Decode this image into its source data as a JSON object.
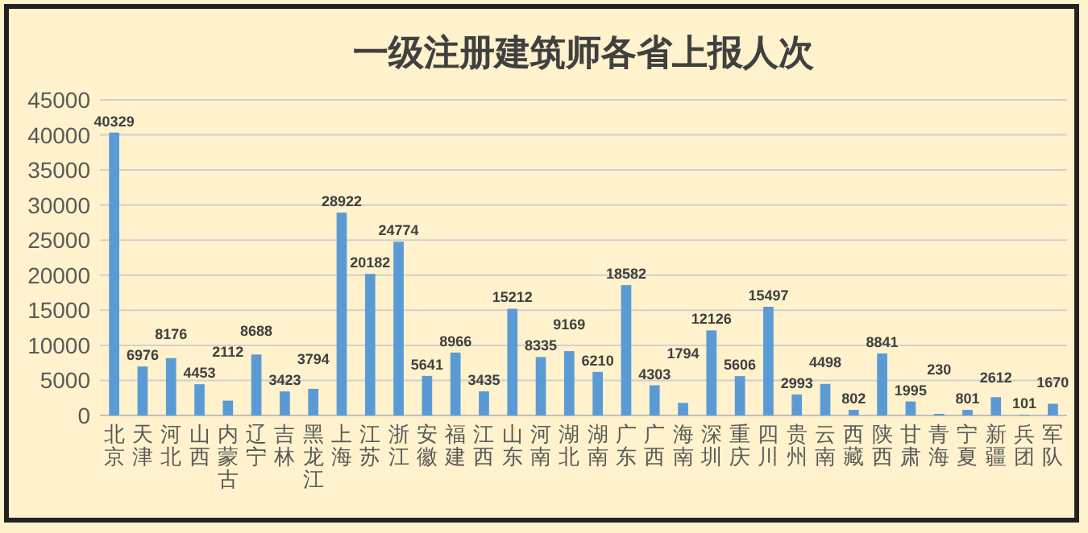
{
  "chart_data": {
    "type": "bar",
    "title": "一级注册建筑师各省上报人次",
    "categories": [
      "北京",
      "天津",
      "河北",
      "山西",
      "内蒙古",
      "辽宁",
      "吉林",
      "黑龙江",
      "上海",
      "江苏",
      "浙江",
      "安徽",
      "福建",
      "江西",
      "山东",
      "河南",
      "湖北",
      "湖南",
      "广东",
      "广西",
      "海南",
      "深圳",
      "重庆",
      "四川",
      "贵州",
      "云南",
      "西藏",
      "陕西",
      "甘肃",
      "青海",
      "宁夏",
      "新疆",
      "兵团",
      "军队"
    ],
    "values": [
      40329,
      6976,
      8176,
      4453,
      2112,
      8688,
      3423,
      3794,
      28922,
      20182,
      24774,
      5641,
      8966,
      3435,
      15212,
      8335,
      9169,
      6210,
      18582,
      4303,
      1794,
      12126,
      5606,
      15497,
      2993,
      4498,
      802,
      8841,
      1995,
      230,
      801,
      2612,
      101,
      1670
    ],
    "color": "#5b9bd5",
    "ylim": [
      0,
      45000
    ],
    "yticks": [
      0,
      5000,
      10000,
      15000,
      20000,
      25000,
      30000,
      35000,
      40000,
      45000
    ],
    "grid": "y",
    "data_labels": true
  }
}
